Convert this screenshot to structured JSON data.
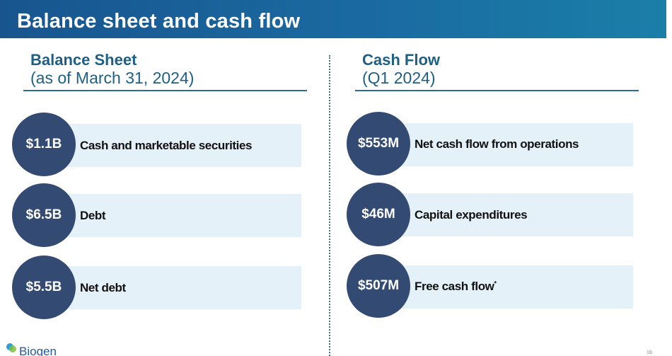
{
  "slide": {
    "title": "Balance sheet and cash flow",
    "page_number": "18"
  },
  "balance_sheet": {
    "heading": "Balance Sheet",
    "subheading": "(as of March 31, 2024)",
    "items": [
      {
        "value": "$1.1B",
        "label": "Cash and marketable securities"
      },
      {
        "value": "$6.5B",
        "label": "Debt"
      },
      {
        "value": "$5.5B",
        "label": "Net debt"
      }
    ]
  },
  "cash_flow": {
    "heading": "Cash Flow",
    "subheading": "(Q1 2024)",
    "items": [
      {
        "value": "$553M",
        "label": "Net cash flow from operations"
      },
      {
        "value": "$46M",
        "label": "Capital expenditures"
      },
      {
        "value": "$507M",
        "label": "Free cash flow",
        "footnote_mark": "*"
      }
    ]
  },
  "footer": {
    "logo_text": "Biogen"
  },
  "colors": {
    "title_bar": "#1a6aa1",
    "heading_text": "#1e5f83",
    "circle": "#334a72",
    "row_band": "#e4f1f8"
  }
}
